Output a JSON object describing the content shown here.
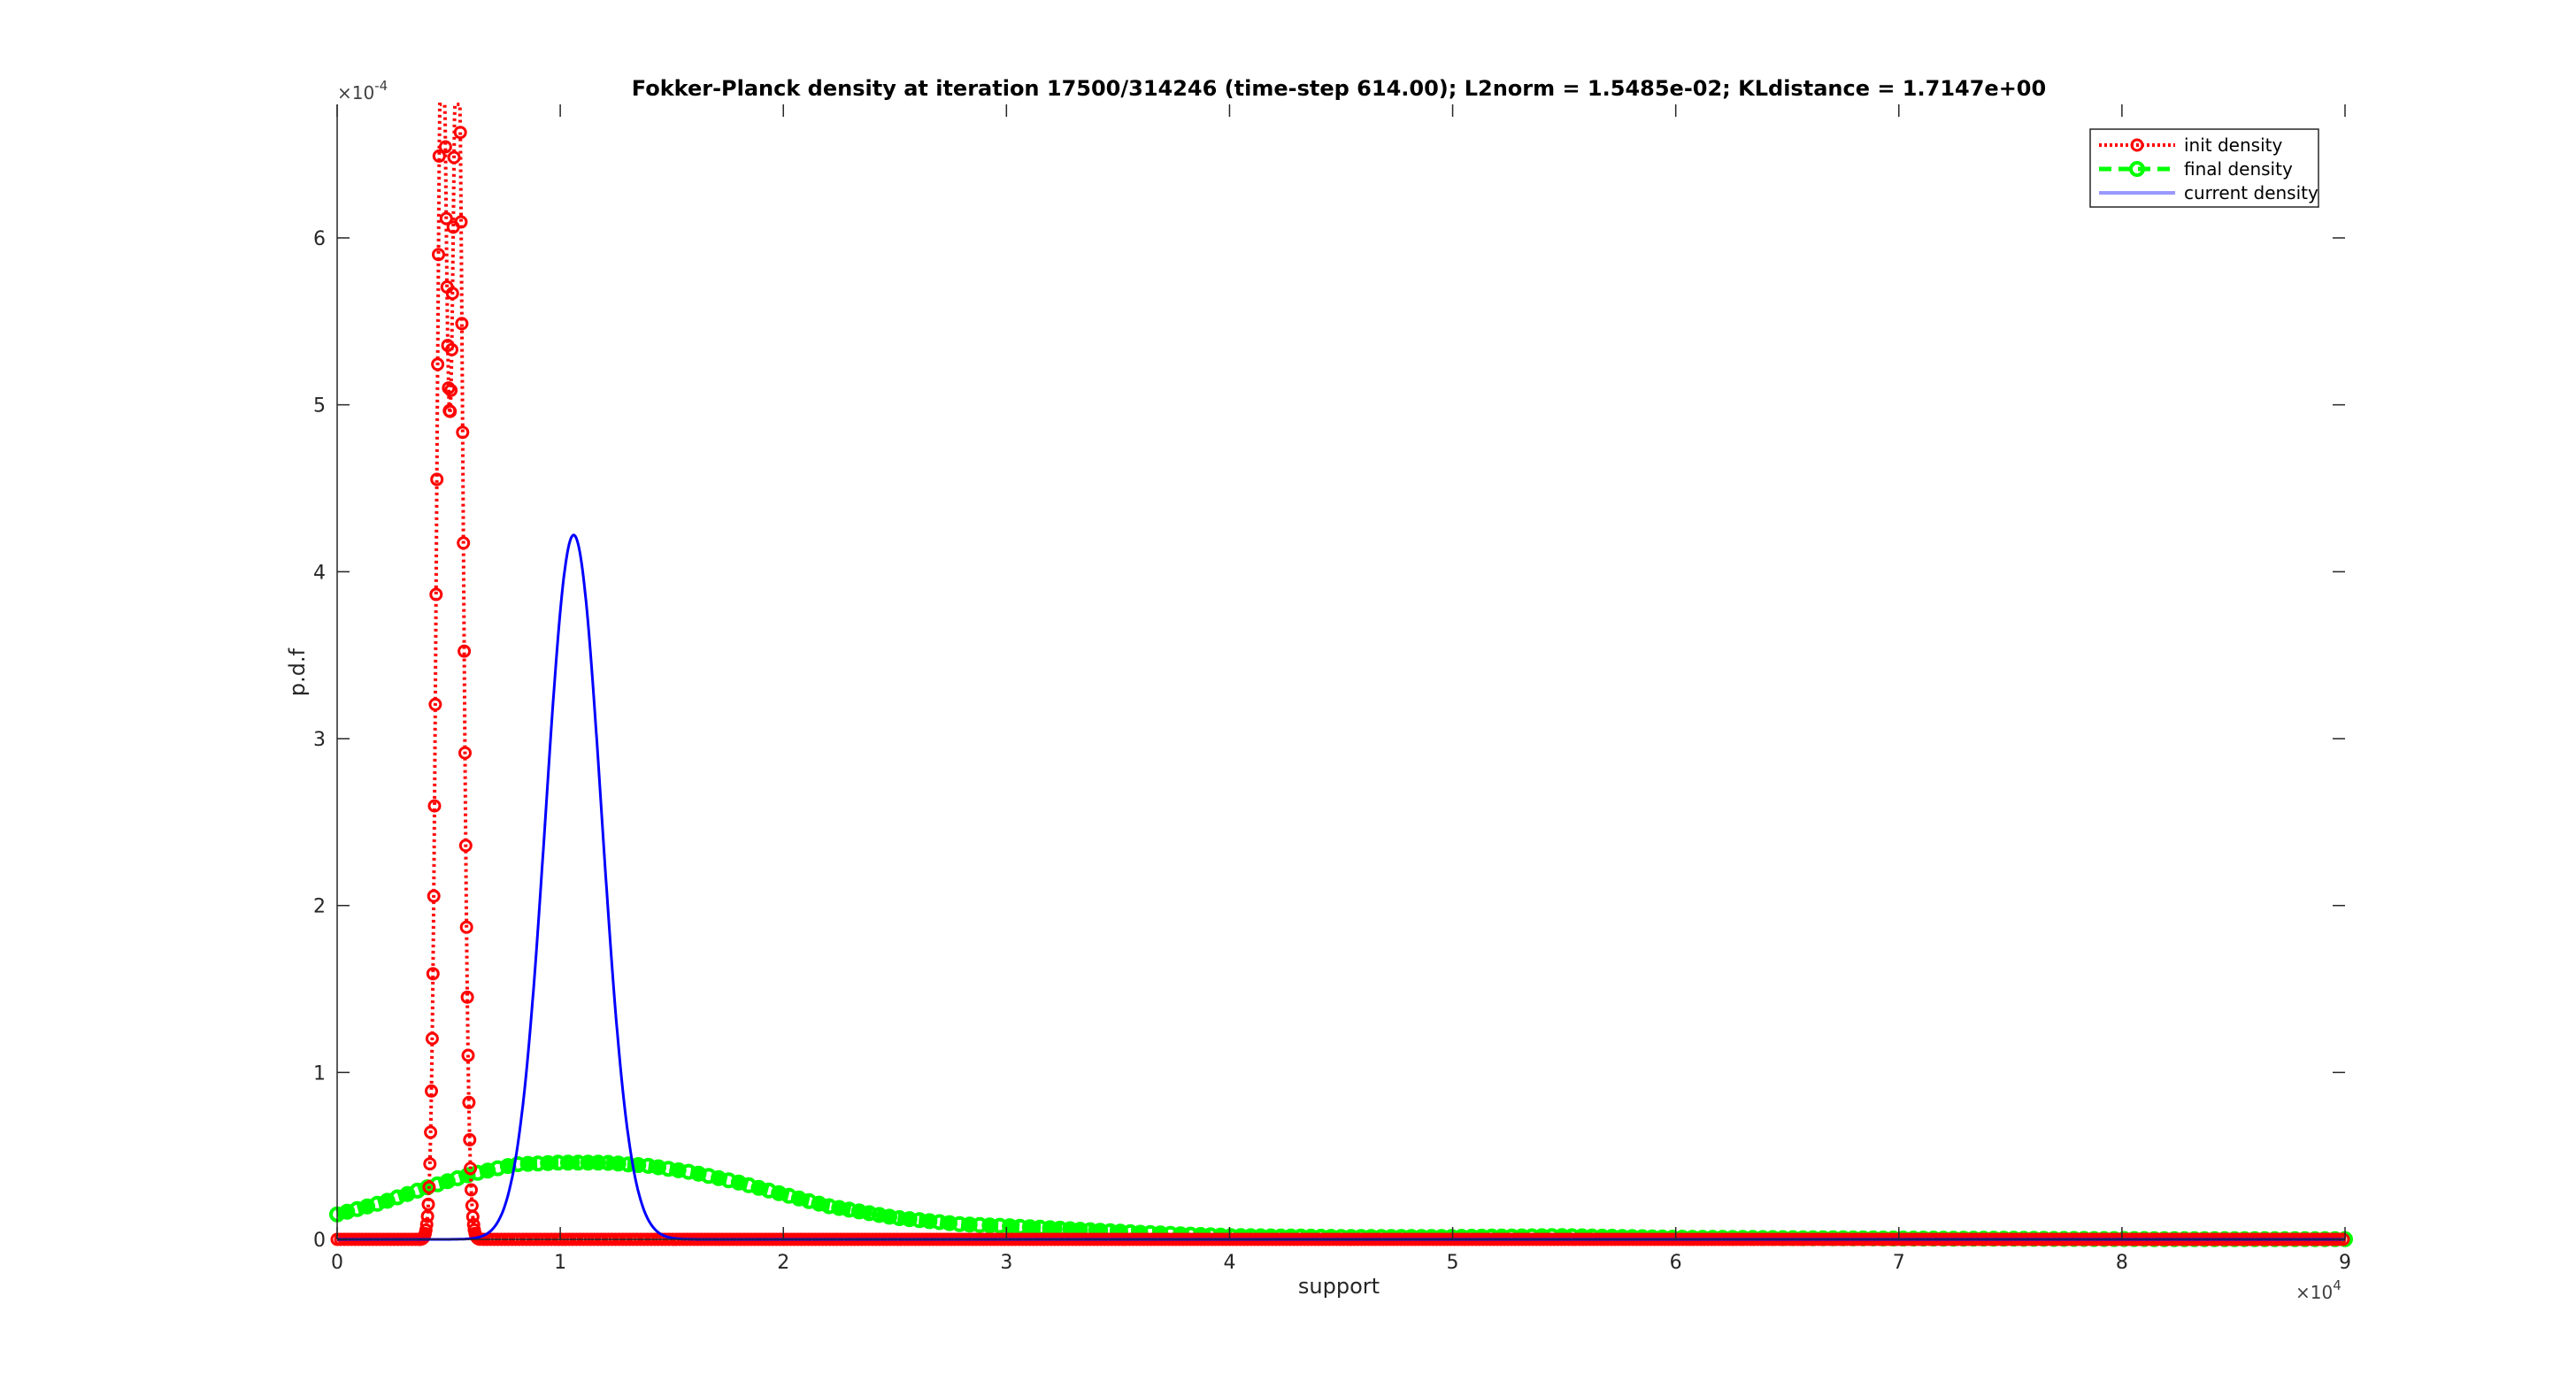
{
  "chart_data": {
    "type": "line",
    "title": "Fokker-Planck density at iteration 17500/314246 (time-step 614.00); L2norm = 1.5485e-02; KLdistance = 1.7147e+00",
    "xlabel": "support",
    "ylabel": "p.d.f",
    "xlim": [
      0,
      90000
    ],
    "ylim": [
      0,
      0.00068
    ],
    "x_ticks": [
      0,
      10000,
      20000,
      30000,
      40000,
      50000,
      60000,
      70000,
      80000,
      90000
    ],
    "x_tick_labels": [
      "0",
      "1",
      "2",
      "3",
      "4",
      "5",
      "6",
      "7",
      "8",
      "9"
    ],
    "x_exponent_label": "×10",
    "x_exponent": "4",
    "y_ticks": [
      0,
      0.0001,
      0.0002,
      0.0003,
      0.0004,
      0.0005,
      0.0006
    ],
    "y_tick_labels": [
      "0",
      "1",
      "2",
      "3",
      "4",
      "5",
      "6"
    ],
    "y_exponent_label": "×10",
    "y_exponent": "-4",
    "grid": false,
    "legend_position": "top-right",
    "series": [
      {
        "name": "init density",
        "style": "dotted-with-diamond-markers",
        "color": "#ff0000",
        "model": "mixture",
        "components": [
          {
            "mu": 4700,
            "sigma": 230,
            "amp": 0.00075
          },
          {
            "mu": 5400,
            "sigma": 240,
            "amp": 0.00075
          }
        ]
      },
      {
        "name": "final density",
        "style": "dashed-with-markers",
        "color": "#00ff00",
        "x": [
          0,
          2000,
          4000,
          6000,
          8000,
          10000,
          12000,
          14000,
          16000,
          18000,
          20000,
          22000,
          25000,
          28000,
          30000,
          33000,
          36000,
          40000,
          45000,
          50000,
          55000,
          60000,
          70000,
          80000,
          90000
        ],
        "y": [
          1.5e-05,
          2.2e-05,
          3.1e-05,
          3.9e-05,
          4.5e-05,
          4.6e-05,
          4.6e-05,
          4.4e-05,
          4e-05,
          3.4e-05,
          2.7e-05,
          2e-05,
          1.3e-05,
          9e-06,
          8e-06,
          6e-06,
          4e-06,
          2e-06,
          1.5e-06,
          1.5e-06,
          2e-06,
          1e-06,
          5e-07,
          2e-07,
          1e-07
        ]
      },
      {
        "name": "current density",
        "style": "solid",
        "color": "#0000ff",
        "legend_color": "#9999ff",
        "model": "mixture",
        "components": [
          {
            "mu": 10600,
            "sigma": 1250,
            "amp": 0.000422
          }
        ]
      }
    ]
  }
}
